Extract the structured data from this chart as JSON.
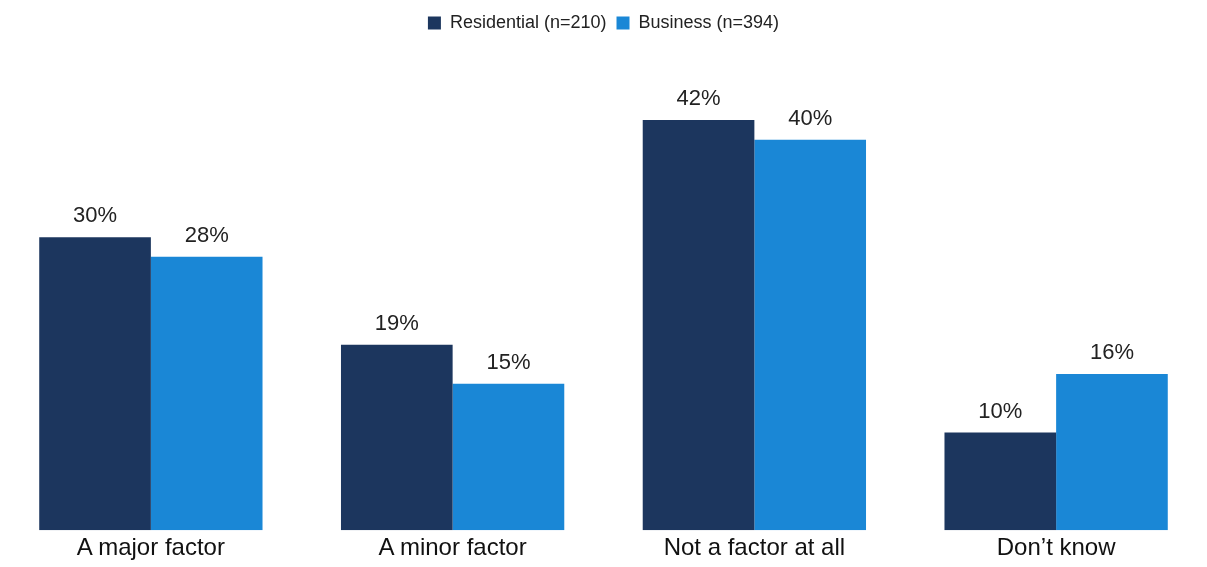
{
  "chart_data": {
    "type": "bar",
    "categories": [
      "A major factor",
      "A minor factor",
      "Not a factor at all",
      "Don’t know"
    ],
    "series": [
      {
        "name": "Residential (n=210)",
        "color": "#1c365e",
        "values": [
          30,
          19,
          42,
          10
        ],
        "value_labels": [
          "30%",
          "19%",
          "42%",
          "10%"
        ]
      },
      {
        "name": "Business (n=394)",
        "color": "#1a87d6",
        "values": [
          28,
          15,
          40,
          16
        ],
        "value_labels": [
          "28%",
          "15%",
          "40%",
          "16%"
        ]
      }
    ],
    "legend": "top",
    "grid": false,
    "tick_labels": "x"
  }
}
